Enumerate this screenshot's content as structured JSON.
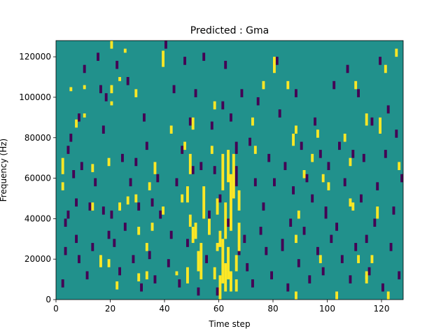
{
  "chart_data": {
    "type": "heatmap",
    "title": "Predicted : Gma",
    "xlabel": "Time step",
    "ylabel": "Frequency (Hz)",
    "xlim": [
      0,
      128
    ],
    "ylim": [
      0,
      128000
    ],
    "xticks": [
      0,
      20,
      40,
      60,
      80,
      100,
      120
    ],
    "yticks": [
      0,
      20000,
      40000,
      60000,
      80000,
      100000,
      120000
    ],
    "xtick_labels": [
      "0",
      "20",
      "40",
      "60",
      "80",
      "100",
      "120"
    ],
    "ytick_labels": [
      "0",
      "20000",
      "40000",
      "60000",
      "80000",
      "100000",
      "120000"
    ],
    "colormap": "viridis",
    "colors": {
      "background": "#21918c",
      "low": "#440154",
      "high": "#fde725"
    },
    "grid": false,
    "n_time_steps": 128,
    "n_frequency_bins": 128,
    "cell_values": {
      "background": 0.5,
      "low": 0.0,
      "high": 1.0
    },
    "high_cells": [
      [
        2,
        62000,
        70000
      ],
      [
        2,
        54000,
        58000
      ],
      [
        5,
        103000,
        105000
      ],
      [
        7,
        85000,
        89000
      ],
      [
        10,
        104000,
        106000
      ],
      [
        10,
        90000,
        92000
      ],
      [
        13,
        63000,
        67000
      ],
      [
        13,
        44000,
        48000
      ],
      [
        16,
        16000,
        22000
      ],
      [
        19,
        66000,
        70000
      ],
      [
        19,
        16000,
        20000
      ],
      [
        20,
        96000,
        98000
      ],
      [
        20,
        102000,
        106000
      ],
      [
        20,
        124000,
        128000
      ],
      [
        22,
        5000,
        9000
      ],
      [
        23,
        108000,
        110000
      ],
      [
        23,
        44000,
        48000
      ],
      [
        25,
        122000,
        124000
      ],
      [
        26,
        47000,
        51000
      ],
      [
        29,
        48000,
        52000
      ],
      [
        29,
        100000,
        104000
      ],
      [
        30,
        32000,
        36000
      ],
      [
        30,
        9000,
        13000
      ],
      [
        33,
        10000,
        14000
      ],
      [
        33,
        24000,
        28000
      ],
      [
        34,
        54000,
        58000
      ],
      [
        35,
        34000,
        38000
      ],
      [
        36,
        62000,
        68000
      ],
      [
        39,
        115000,
        123000
      ],
      [
        39,
        42000,
        46000
      ],
      [
        42,
        82000,
        86000
      ],
      [
        44,
        12000,
        14000
      ],
      [
        46,
        48000,
        52000
      ],
      [
        47,
        74000,
        78000
      ],
      [
        48,
        8000,
        16000
      ],
      [
        48,
        48000,
        56000
      ],
      [
        49,
        62000,
        72000
      ],
      [
        49,
        36000,
        42000
      ],
      [
        50,
        84000,
        90000
      ],
      [
        50,
        28000,
        36000
      ],
      [
        51,
        30000,
        38000
      ],
      [
        52,
        14000,
        24000
      ],
      [
        53,
        10000,
        28000
      ],
      [
        54,
        40000,
        56000
      ],
      [
        56,
        32000,
        40000
      ],
      [
        57,
        72000,
        76000
      ],
      [
        58,
        10000,
        16000
      ],
      [
        58,
        94000,
        98000
      ],
      [
        59,
        24000,
        28000
      ],
      [
        59,
        42000,
        50000
      ],
      [
        60,
        0,
        12000
      ],
      [
        60,
        26000,
        34000
      ],
      [
        61,
        8000,
        30000
      ],
      [
        61,
        54000,
        72000
      ],
      [
        62,
        4000,
        18000
      ],
      [
        62,
        30000,
        48000
      ],
      [
        63,
        10000,
        26000
      ],
      [
        63,
        58000,
        74000
      ],
      [
        64,
        4000,
        14000
      ],
      [
        64,
        34000,
        62000
      ],
      [
        65,
        50000,
        72000
      ],
      [
        66,
        4000,
        10000
      ],
      [
        66,
        14000,
        22000
      ],
      [
        67,
        24000,
        38000
      ],
      [
        67,
        44000,
        54000
      ],
      [
        72,
        86000,
        90000
      ],
      [
        73,
        72000,
        76000
      ],
      [
        76,
        104000,
        108000
      ],
      [
        80,
        112000,
        120000
      ],
      [
        85,
        104000,
        108000
      ],
      [
        87,
        76000,
        82000
      ],
      [
        88,
        28000,
        32000
      ],
      [
        88,
        82000,
        86000
      ],
      [
        88,
        0,
        4000
      ],
      [
        89,
        40000,
        44000
      ],
      [
        91,
        60000,
        64000
      ],
      [
        94,
        68000,
        72000
      ],
      [
        96,
        80000,
        84000
      ],
      [
        97,
        18000,
        22000
      ],
      [
        98,
        58000,
        62000
      ],
      [
        100,
        54000,
        58000
      ],
      [
        103,
        0,
        4000
      ],
      [
        106,
        78000,
        82000
      ],
      [
        108,
        66000,
        70000
      ],
      [
        108,
        46000,
        50000
      ],
      [
        109,
        44000,
        48000
      ],
      [
        110,
        104000,
        108000
      ],
      [
        111,
        18000,
        22000
      ],
      [
        114,
        8000,
        12000
      ],
      [
        114,
        10000,
        14000
      ],
      [
        114,
        86000,
        92000
      ],
      [
        116,
        18000,
        22000
      ],
      [
        118,
        40000,
        46000
      ],
      [
        119,
        82000,
        90000
      ],
      [
        121,
        112000,
        116000
      ],
      [
        122,
        0,
        4000
      ],
      [
        125,
        120000,
        124000
      ],
      [
        126,
        64000,
        68000
      ]
    ],
    "low_cells": [
      [
        2,
        6000,
        10000
      ],
      [
        3,
        22000,
        26000
      ],
      [
        3,
        36000,
        40000
      ],
      [
        4,
        40000,
        44000
      ],
      [
        4,
        72000,
        76000
      ],
      [
        5,
        78000,
        82000
      ],
      [
        6,
        60000,
        64000
      ],
      [
        7,
        28000,
        32000
      ],
      [
        7,
        46000,
        50000
      ],
      [
        8,
        18000,
        22000
      ],
      [
        8,
        88000,
        92000
      ],
      [
        9,
        64000,
        68000
      ],
      [
        10,
        112000,
        116000
      ],
      [
        11,
        10000,
        14000
      ],
      [
        12,
        44000,
        48000
      ],
      [
        13,
        24000,
        28000
      ],
      [
        14,
        56000,
        60000
      ],
      [
        15,
        118000,
        122000
      ],
      [
        16,
        102000,
        106000
      ],
      [
        17,
        42000,
        46000
      ],
      [
        17,
        82000,
        86000
      ],
      [
        18,
        98000,
        102000
      ],
      [
        19,
        30000,
        34000
      ],
      [
        20,
        40000,
        44000
      ],
      [
        21,
        26000,
        30000
      ],
      [
        22,
        114000,
        118000
      ],
      [
        23,
        12000,
        16000
      ],
      [
        24,
        68000,
        72000
      ],
      [
        25,
        34000,
        38000
      ],
      [
        26,
        106000,
        110000
      ],
      [
        27,
        56000,
        60000
      ],
      [
        28,
        18000,
        22000
      ],
      [
        29,
        66000,
        70000
      ],
      [
        30,
        44000,
        48000
      ],
      [
        31,
        4000,
        8000
      ],
      [
        32,
        88000,
        92000
      ],
      [
        33,
        74000,
        78000
      ],
      [
        34,
        20000,
        24000
      ],
      [
        35,
        46000,
        50000
      ],
      [
        36,
        8000,
        12000
      ],
      [
        37,
        58000,
        62000
      ],
      [
        38,
        40000,
        44000
      ],
      [
        40,
        124000,
        128000
      ],
      [
        41,
        16000,
        20000
      ],
      [
        42,
        30000,
        34000
      ],
      [
        43,
        102000,
        106000
      ],
      [
        44,
        56000,
        60000
      ],
      [
        45,
        6000,
        10000
      ],
      [
        46,
        72000,
        76000
      ],
      [
        47,
        116000,
        120000
      ],
      [
        48,
        26000,
        30000
      ],
      [
        49,
        86000,
        90000
      ],
      [
        50,
        62000,
        66000
      ],
      [
        51,
        100000,
        104000
      ],
      [
        52,
        2000,
        6000
      ],
      [
        53,
        64000,
        68000
      ],
      [
        54,
        118000,
        122000
      ],
      [
        55,
        18000,
        22000
      ],
      [
        56,
        40000,
        44000
      ],
      [
        57,
        84000,
        88000
      ],
      [
        58,
        62000,
        66000
      ],
      [
        59,
        2000,
        6000
      ],
      [
        60,
        48000,
        52000
      ],
      [
        61,
        94000,
        98000
      ],
      [
        62,
        114000,
        118000
      ],
      [
        63,
        36000,
        40000
      ],
      [
        64,
        88000,
        92000
      ],
      [
        66,
        72000,
        78000
      ],
      [
        66,
        56000,
        66000
      ],
      [
        67,
        22000,
        26000
      ],
      [
        68,
        100000,
        104000
      ],
      [
        69,
        28000,
        32000
      ],
      [
        70,
        14000,
        18000
      ],
      [
        71,
        76000,
        80000
      ],
      [
        72,
        6000,
        10000
      ],
      [
        73,
        56000,
        60000
      ],
      [
        74,
        96000,
        100000
      ],
      [
        75,
        32000,
        36000
      ],
      [
        76,
        44000,
        48000
      ],
      [
        77,
        22000,
        26000
      ],
      [
        78,
        68000,
        72000
      ],
      [
        79,
        10000,
        14000
      ],
      [
        80,
        56000,
        60000
      ],
      [
        81,
        116000,
        120000
      ],
      [
        82,
        90000,
        94000
      ],
      [
        83,
        24000,
        30000
      ],
      [
        84,
        64000,
        68000
      ],
      [
        85,
        4000,
        8000
      ],
      [
        86,
        36000,
        40000
      ],
      [
        87,
        52000,
        56000
      ],
      [
        88,
        100000,
        104000
      ],
      [
        89,
        16000,
        20000
      ],
      [
        90,
        74000,
        78000
      ],
      [
        91,
        32000,
        36000
      ],
      [
        92,
        58000,
        62000
      ],
      [
        93,
        8000,
        12000
      ],
      [
        94,
        48000,
        52000
      ],
      [
        95,
        86000,
        90000
      ],
      [
        96,
        22000,
        26000
      ],
      [
        97,
        70000,
        74000
      ],
      [
        98,
        12000,
        16000
      ],
      [
        99,
        40000,
        46000
      ],
      [
        100,
        64000,
        68000
      ],
      [
        101,
        28000,
        32000
      ],
      [
        102,
        104000,
        108000
      ],
      [
        103,
        34000,
        38000
      ],
      [
        104,
        74000,
        78000
      ],
      [
        105,
        18000,
        22000
      ],
      [
        106,
        56000,
        60000
      ],
      [
        107,
        112000,
        116000
      ],
      [
        108,
        8000,
        12000
      ],
      [
        109,
        70000,
        74000
      ],
      [
        110,
        24000,
        28000
      ],
      [
        111,
        100000,
        104000
      ],
      [
        112,
        48000,
        52000
      ],
      [
        113,
        68000,
        72000
      ],
      [
        114,
        28000,
        32000
      ],
      [
        115,
        12000,
        16000
      ],
      [
        116,
        86000,
        90000
      ],
      [
        117,
        36000,
        40000
      ],
      [
        118,
        54000,
        58000
      ],
      [
        119,
        116000,
        120000
      ],
      [
        120,
        4000,
        8000
      ],
      [
        121,
        70000,
        74000
      ],
      [
        122,
        92000,
        96000
      ],
      [
        123,
        24000,
        28000
      ],
      [
        124,
        42000,
        46000
      ],
      [
        125,
        80000,
        84000
      ],
      [
        126,
        10000,
        14000
      ],
      [
        127,
        58000,
        62000
      ]
    ]
  }
}
